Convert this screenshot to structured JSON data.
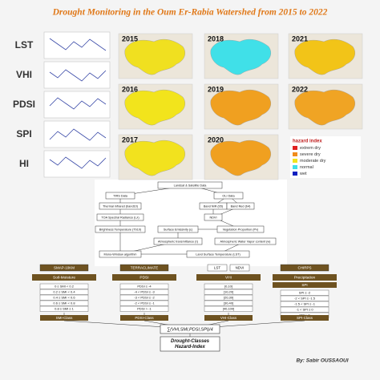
{
  "title": "Drought Monitoring in the Oum Er-Rabia Watershed from 2015 to 2022",
  "indices": [
    "LST",
    "VHI",
    "PDSI",
    "SPI",
    "HI"
  ],
  "maps": [
    {
      "year": "2015",
      "color": "#f0e020"
    },
    {
      "year": "2018",
      "color": "#40e0e8"
    },
    {
      "year": "2021",
      "color": "#f2c418"
    },
    {
      "year": "2016",
      "color": "#f2e41c"
    },
    {
      "year": "2019",
      "color": "#f0a020"
    },
    {
      "year": "2022",
      "color": "#f0a424"
    },
    {
      "year": "2017",
      "color": "#f2e21e"
    },
    {
      "year": "2020",
      "color": "#f0a020"
    }
  ],
  "legend": {
    "title": "hazard index",
    "items": [
      {
        "label": "extrem dry",
        "color": "#e02020"
      },
      {
        "label": "severe dry",
        "color": "#f08c1c"
      },
      {
        "label": "moderate dry",
        "color": "#f2e41c"
      },
      {
        "label": "normal",
        "color": "#40e0e8"
      },
      {
        "label": "wet",
        "color": "#1020c0"
      }
    ]
  },
  "flowchart": {
    "nodes": [
      "Landsat & Satellite Data",
      "TIRS Data",
      "OLI Data",
      "Thermal infrared (band10)",
      "Band NIR (b5)",
      "Band Red (b4)",
      "TOA Spectral Radiance (Lλ)",
      "NDVI",
      "Brightness Temperature (Tb10)",
      "Surface Emissivity (ε)",
      "Vegetation Proportion (Pv)",
      "Atmospheric transmittance (τ)",
      "Atmospheric Water Vapor content (w)",
      "Mono-Window algorithm",
      "Land Surface Temperature (LST)"
    ]
  },
  "classes": [
    {
      "sources": [
        "SMAP-10KM"
      ],
      "variable": "Soil-Moisture",
      "conditions": [
        "0 ≤ SMI < 0.2",
        "0.2 ≤ SMI < 0.4",
        "0.4 ≤ SMI < 0.6",
        "0.6 ≤ SMI < 0.8",
        "0.8 ≤ SMI ≤ 1"
      ],
      "class": "SMI-Class"
    },
    {
      "sources": [
        "TERRACLIMATE"
      ],
      "variable": "PDSI",
      "conditions": [
        "PDSI ≤ -4",
        "-4 < PDSI ≤ -3",
        "-3 < PDSI ≤ -2",
        "-2 < PDSI ≤ -1",
        "PDSI > -1"
      ],
      "class": "PDSI-Class"
    },
    {
      "sources": [
        "LST",
        "NDVI"
      ],
      "variable": "VHI",
      "conditions": [
        "[0,10]",
        "[10,20]",
        "[20,30]",
        "[30,40]",
        "[40,100]"
      ],
      "class": "VHI-Class"
    },
    {
      "sources": [
        "CHIRPS"
      ],
      "variable": "Precipitation",
      "conditions": [
        "SPI ≤ -2",
        "-2 < SPI ≤ -1.5",
        "-1.5 < SPI ≤ -1",
        "-1 < SPI ≤ 0",
        "SPI > 0"
      ],
      "class": "SPI-Class",
      "label": "SPI"
    }
  ],
  "formula": "∑(VHI,SMI,PDSI,SPI)/4",
  "output": [
    "Drought-Classes",
    "Hazard-Index"
  ],
  "author": "By: Sabir OUSSAOUI"
}
